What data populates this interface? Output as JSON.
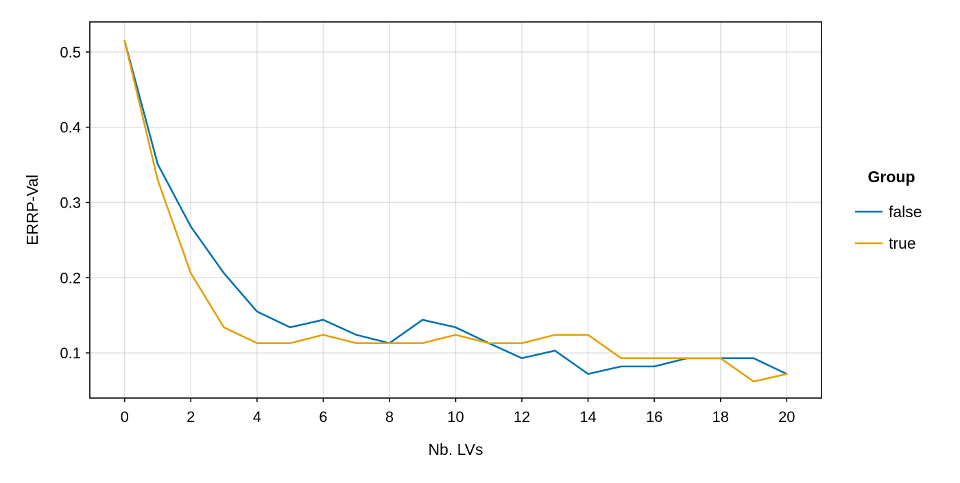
{
  "chart_data": {
    "type": "line",
    "xlabel": "Nb. LVs",
    "ylabel": "ERRP-Val",
    "x": [
      0,
      1,
      2,
      3,
      4,
      5,
      6,
      7,
      8,
      9,
      10,
      11,
      12,
      13,
      14,
      15,
      16,
      17,
      18,
      19,
      20
    ],
    "xlim": [
      -1.05,
      21.05
    ],
    "ylim": [
      0.04,
      0.54
    ],
    "xticks": [
      0,
      2,
      4,
      6,
      8,
      10,
      12,
      14,
      16,
      18,
      20
    ],
    "xtick_labels": [
      "0",
      "2",
      "4",
      "6",
      "8",
      "10",
      "12",
      "14",
      "16",
      "18",
      "20"
    ],
    "yticks": [
      0.1,
      0.2,
      0.3,
      0.4,
      0.5
    ],
    "ytick_labels": [
      "0.1",
      "0.2",
      "0.3",
      "0.4",
      "0.5"
    ],
    "grid": true,
    "legend": {
      "title": "Group",
      "position": "right"
    },
    "series": [
      {
        "name": "false",
        "color": "#0072b2",
        "values": [
          0.515,
          0.351,
          0.268,
          0.206,
          0.155,
          0.134,
          0.144,
          0.124,
          0.113,
          0.144,
          0.134,
          0.113,
          0.093,
          0.103,
          0.072,
          0.082,
          0.082,
          0.093,
          0.093,
          0.093,
          0.072
        ]
      },
      {
        "name": "true",
        "color": "#e69f00",
        "values": [
          0.515,
          0.33,
          0.206,
          0.134,
          0.113,
          0.113,
          0.124,
          0.113,
          0.113,
          0.113,
          0.124,
          0.113,
          0.113,
          0.124,
          0.124,
          0.093,
          0.093,
          0.093,
          0.093,
          0.062,
          0.072
        ]
      }
    ]
  }
}
